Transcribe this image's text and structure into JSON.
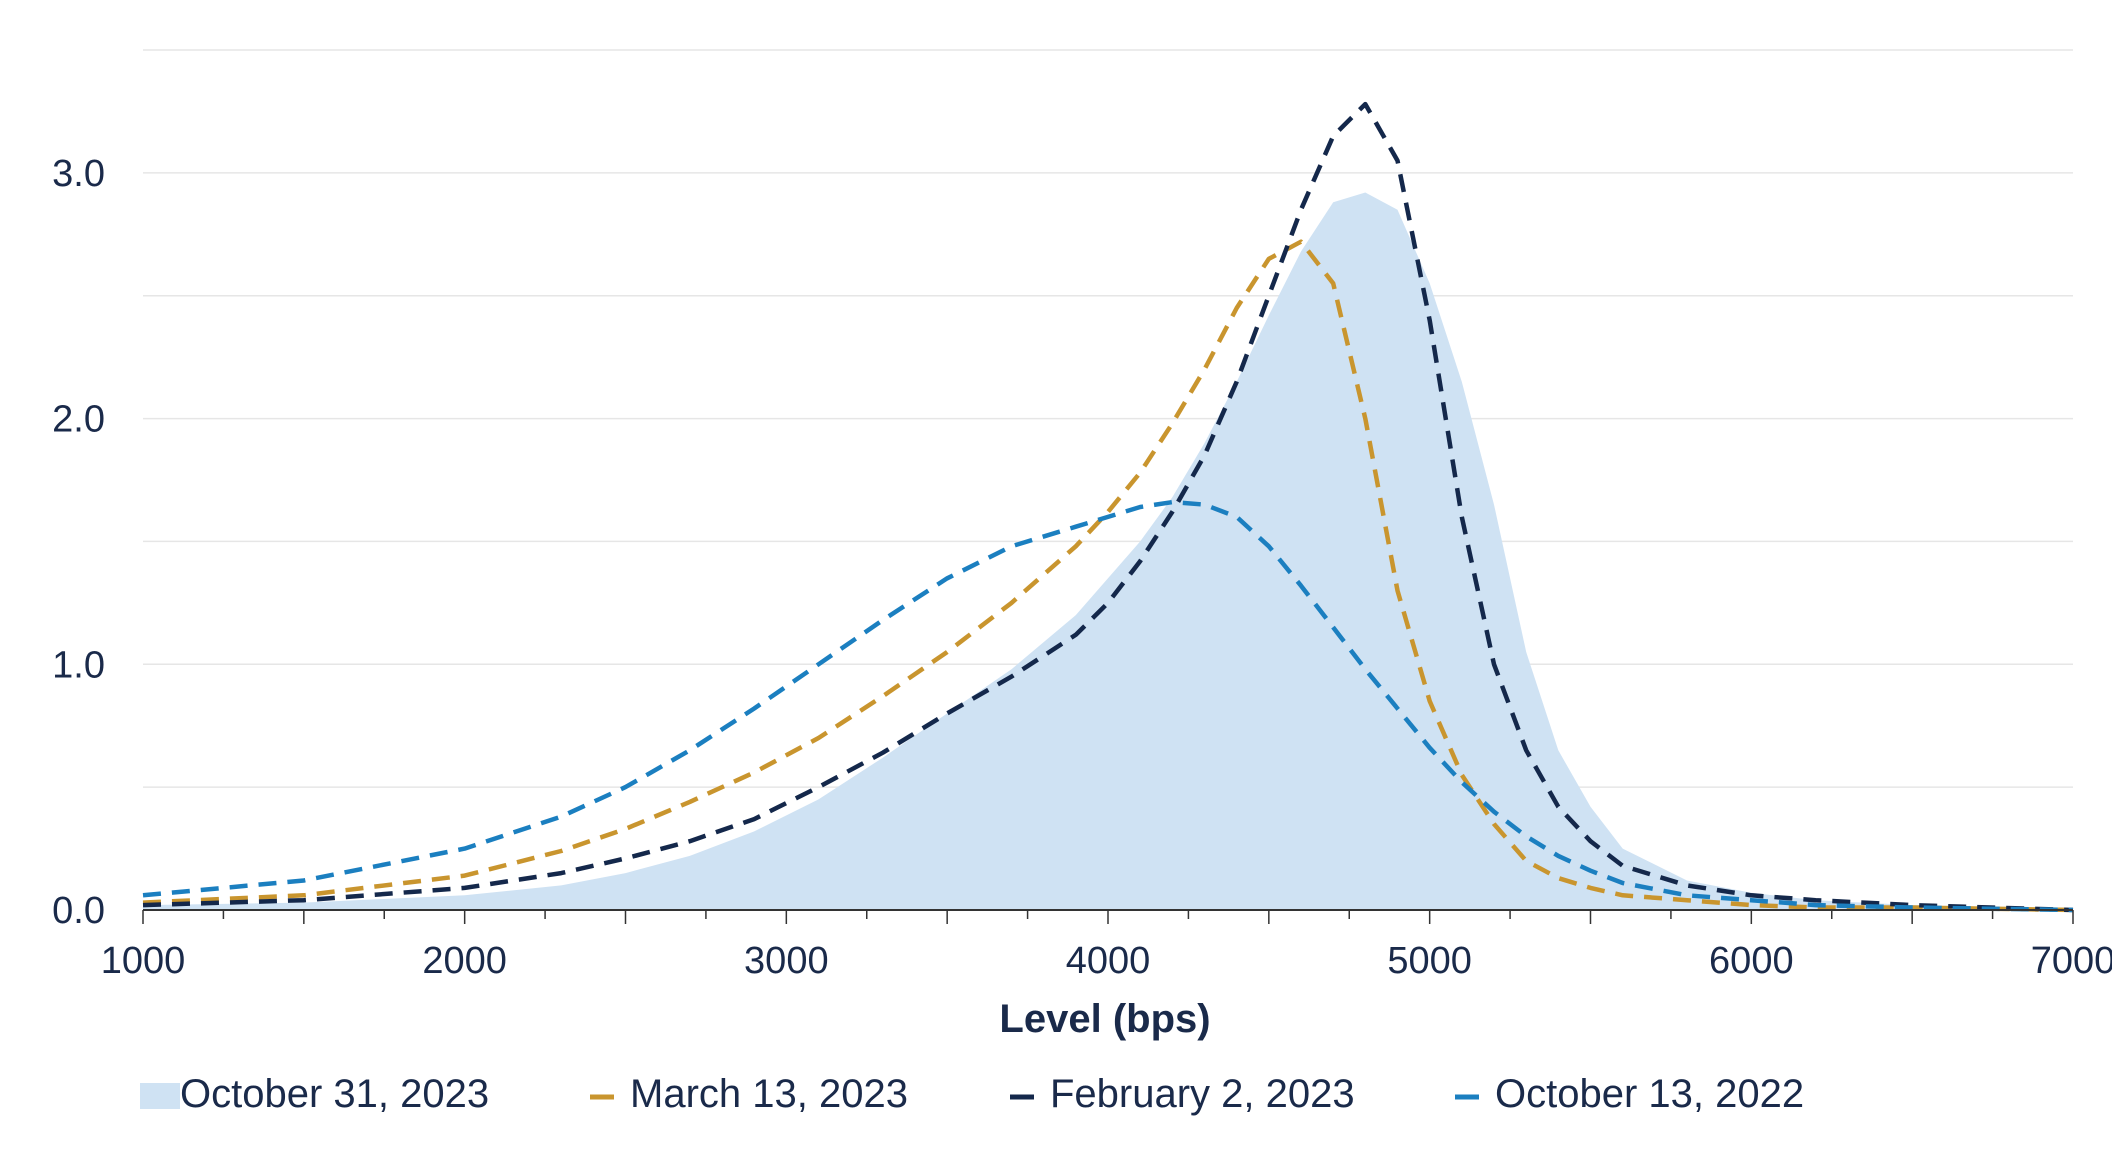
{
  "chart_data": {
    "type": "area",
    "xlabel": "Level (bps)",
    "ylabel": "",
    "xlim": [
      1000,
      7000
    ],
    "ylim": [
      0,
      3.5
    ],
    "x_ticks": [
      1000,
      2000,
      3000,
      4000,
      5000,
      6000,
      7000
    ],
    "x_tick_labels": [
      "1000",
      "2000",
      "3000",
      "4000",
      "5000",
      "6000",
      "7000"
    ],
    "y_ticks": [
      0,
      1,
      2,
      3
    ],
    "y_tick_labels": [
      "0.0",
      "1.0",
      "2.0",
      "3.0"
    ],
    "y_gridlines": [
      0.5,
      1.0,
      1.5,
      2.0,
      2.5,
      3.0,
      3.5
    ],
    "legend_position": "bottom",
    "series": [
      {
        "name": "October 31, 2023",
        "style": "area",
        "color": "#cfe2f3",
        "x": [
          1000,
          1500,
          2000,
          2300,
          2500,
          2700,
          2900,
          3100,
          3300,
          3500,
          3700,
          3900,
          4000,
          4100,
          4200,
          4300,
          4400,
          4500,
          4600,
          4700,
          4800,
          4900,
          5000,
          5100,
          5200,
          5300,
          5400,
          5500,
          5600,
          5800,
          6000,
          6200,
          6500,
          7000
        ],
        "y": [
          0.02,
          0.03,
          0.06,
          0.1,
          0.15,
          0.22,
          0.32,
          0.45,
          0.62,
          0.8,
          0.98,
          1.2,
          1.35,
          1.5,
          1.68,
          1.9,
          2.15,
          2.42,
          2.68,
          2.88,
          2.92,
          2.85,
          2.55,
          2.15,
          1.65,
          1.05,
          0.65,
          0.42,
          0.25,
          0.12,
          0.07,
          0.04,
          0.02,
          0.0
        ]
      },
      {
        "name": "March 13, 2023",
        "style": "dashed",
        "color": "#c9952e",
        "x": [
          1000,
          1500,
          2000,
          2300,
          2500,
          2700,
          2900,
          3100,
          3300,
          3500,
          3700,
          3900,
          4000,
          4100,
          4200,
          4300,
          4400,
          4500,
          4600,
          4700,
          4800,
          4900,
          5000,
          5100,
          5200,
          5300,
          5400,
          5500,
          5600,
          5800,
          6000,
          6200,
          6500,
          7000
        ],
        "y": [
          0.03,
          0.06,
          0.14,
          0.24,
          0.33,
          0.44,
          0.56,
          0.7,
          0.87,
          1.05,
          1.25,
          1.48,
          1.62,
          1.78,
          1.98,
          2.2,
          2.45,
          2.65,
          2.72,
          2.55,
          2.0,
          1.3,
          0.85,
          0.55,
          0.35,
          0.2,
          0.13,
          0.09,
          0.06,
          0.04,
          0.02,
          0.01,
          0.01,
          0.0
        ]
      },
      {
        "name": "February 2, 2023",
        "style": "dashed",
        "color": "#14284b",
        "x": [
          1000,
          1500,
          2000,
          2300,
          2500,
          2700,
          2900,
          3100,
          3300,
          3500,
          3700,
          3900,
          4000,
          4100,
          4200,
          4300,
          4400,
          4500,
          4600,
          4700,
          4800,
          4900,
          5000,
          5100,
          5200,
          5300,
          5400,
          5500,
          5600,
          5800,
          6000,
          6200,
          6500,
          7000
        ],
        "y": [
          0.02,
          0.04,
          0.09,
          0.15,
          0.21,
          0.28,
          0.37,
          0.5,
          0.64,
          0.8,
          0.95,
          1.12,
          1.25,
          1.42,
          1.62,
          1.85,
          2.15,
          2.5,
          2.85,
          3.15,
          3.28,
          3.05,
          2.4,
          1.6,
          1.0,
          0.65,
          0.42,
          0.28,
          0.18,
          0.1,
          0.06,
          0.04,
          0.02,
          0.0
        ]
      },
      {
        "name": "October 13, 2022",
        "style": "dashed",
        "color": "#1b7fc0",
        "x": [
          1000,
          1500,
          2000,
          2300,
          2500,
          2700,
          2900,
          3100,
          3300,
          3500,
          3700,
          3900,
          4000,
          4100,
          4200,
          4300,
          4400,
          4500,
          4600,
          4700,
          4800,
          4900,
          5000,
          5100,
          5200,
          5300,
          5400,
          5500,
          5600,
          5800,
          6000,
          6200,
          6500,
          7000
        ],
        "y": [
          0.06,
          0.12,
          0.25,
          0.38,
          0.5,
          0.65,
          0.82,
          1.0,
          1.18,
          1.35,
          1.48,
          1.56,
          1.6,
          1.64,
          1.66,
          1.65,
          1.6,
          1.48,
          1.32,
          1.15,
          0.98,
          0.82,
          0.66,
          0.52,
          0.4,
          0.3,
          0.22,
          0.16,
          0.11,
          0.06,
          0.04,
          0.02,
          0.01,
          0.0
        ]
      }
    ]
  }
}
